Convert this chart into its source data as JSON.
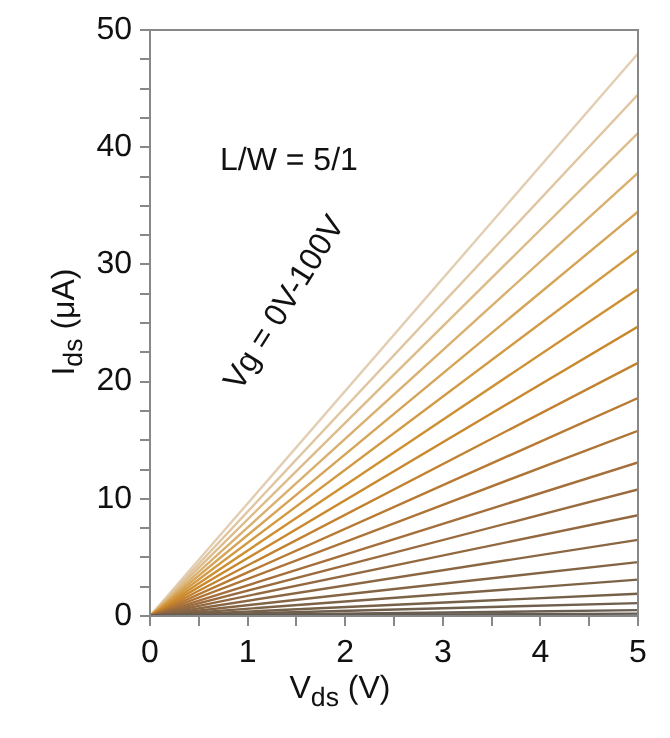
{
  "chart_data": {
    "type": "line",
    "xlabel": "V$_{ds}$ (V)",
    "ylabel": "I$_{ds}$ (μA)",
    "annotations": [
      "L/W = 5/1",
      "Vg = 0V-100V"
    ],
    "x": [
      0,
      5
    ],
    "xlim": [
      0,
      5
    ],
    "ylim": [
      0,
      50
    ],
    "xticks": [
      0,
      {
        "value": 0.5,
        "label": null
      },
      1,
      {
        "value": 1.5,
        "label": null
      },
      2,
      {
        "value": 2.5,
        "label": null
      },
      3,
      {
        "value": 3.5,
        "label": null
      },
      4,
      {
        "value": 4.5,
        "label": null
      },
      5
    ],
    "yticks": [
      0,
      {
        "value": 2.5,
        "label": null
      },
      {
        "value": 5,
        "label": null
      },
      {
        "value": 7.5,
        "label": null
      },
      10,
      {
        "value": 12.5,
        "label": null
      },
      {
        "value": 15,
        "label": null
      },
      {
        "value": 17.5,
        "label": null
      },
      20,
      {
        "value": 22.5,
        "label": null
      },
      {
        "value": 25,
        "label": null
      },
      {
        "value": 27.5,
        "label": null
      },
      30,
      {
        "value": 32.5,
        "label": null
      },
      {
        "value": 35,
        "label": null
      },
      {
        "value": 37.5,
        "label": null
      },
      40,
      {
        "value": 42.5,
        "label": null
      },
      {
        "value": 45,
        "label": null
      },
      {
        "value": 47.5,
        "label": null
      },
      50
    ],
    "grid": false,
    "legend": false,
    "marker": "none",
    "line_style": "solid",
    "series": [
      {
        "color": "#5e5a54",
        "values": [
          0,
          0
        ]
      },
      {
        "color": "#635c52",
        "values": [
          0,
          0.2
        ]
      },
      {
        "color": "#6a5e50",
        "values": [
          0,
          0.5
        ]
      },
      {
        "color": "#705f4c",
        "values": [
          0,
          1.1
        ]
      },
      {
        "color": "#766048",
        "values": [
          0,
          1.9
        ]
      },
      {
        "color": "#7c6246",
        "values": [
          0,
          3.1
        ]
      },
      {
        "color": "#836444",
        "values": [
          0,
          4.6
        ]
      },
      {
        "color": "#8a6642",
        "values": [
          0,
          6.5
        ]
      },
      {
        "color": "#926840",
        "values": [
          0,
          8.6
        ]
      },
      {
        "color": "#9a6b3e",
        "values": [
          0,
          10.8
        ]
      },
      {
        "color": "#a46f3a",
        "values": [
          0,
          13.1
        ]
      },
      {
        "color": "#ae7436",
        "values": [
          0,
          15.8
        ]
      },
      {
        "color": "#b87a32",
        "values": [
          0,
          18.6
        ]
      },
      {
        "color": "#c2812e",
        "values": [
          0,
          21.6
        ]
      },
      {
        "color": "#ca882c",
        "values": [
          0,
          24.7
        ]
      },
      {
        "color": "#cf9034",
        "values": [
          0,
          27.9
        ]
      },
      {
        "color": "#d39a44",
        "values": [
          0,
          31.2
        ]
      },
      {
        "color": "#d6a458",
        "values": [
          0,
          34.5
        ]
      },
      {
        "color": "#d9b070",
        "values": [
          0,
          37.8
        ]
      },
      {
        "color": "#dcbc8a",
        "values": [
          0,
          41.2
        ]
      },
      {
        "color": "#dfc6a0",
        "values": [
          0,
          44.5
        ]
      },
      {
        "color": "#e2ceb2",
        "values": [
          0,
          48.0
        ]
      }
    ]
  }
}
